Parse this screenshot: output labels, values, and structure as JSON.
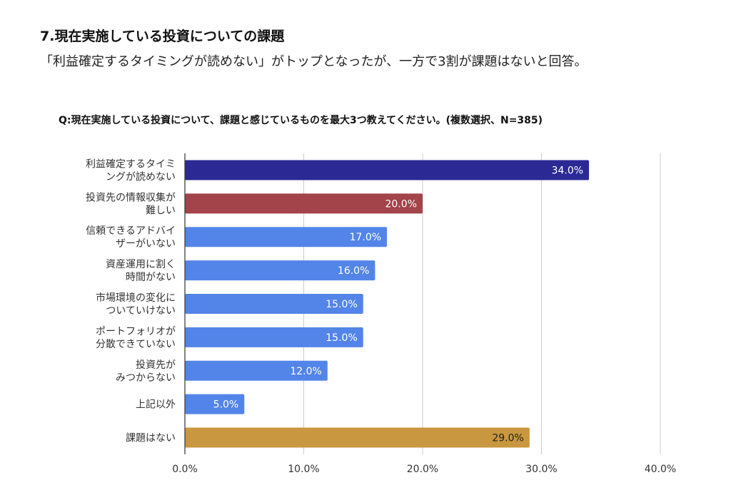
{
  "heading": "7.現在実施している投資についての課題",
  "summary": "「利益確定するタイミングが読めない」がトップとなったが、一方で3割が課題はないと回答。",
  "chart_data": {
    "type": "bar",
    "orientation": "horizontal",
    "title": "Q:現在実施している投資について、課題と感じているものを最大3つ教えてください。(複数選択、N=385)",
    "categories": [
      "利益確定するタイミ\nングが読めない",
      "投資先の情報収集が\n難しい",
      "信頼できるアドバイ\nザーがいない",
      "資産運用に割く\n時間がない",
      "市場環境の変化に\nついていけない",
      "ポートフォリオが\n分散できていない",
      "投資先が\nみつからない",
      "上記以外",
      "課題はない"
    ],
    "values": [
      34.0,
      20.0,
      17.0,
      16.0,
      15.0,
      15.0,
      12.0,
      5.0,
      29.0
    ],
    "data_labels": [
      "34.0%",
      "20.0%",
      "17.0%",
      "16.0%",
      "15.0%",
      "15.0%",
      "12.0%",
      "5.0%",
      "29.0%"
    ],
    "colors": [
      "#2b2a95",
      "#a3434a",
      "#5385e8",
      "#5385e8",
      "#5385e8",
      "#5385e8",
      "#5385e8",
      "#5385e8",
      "#c9973f"
    ],
    "label_colors": [
      "#ffffff",
      "#ffffff",
      "#ffffff",
      "#ffffff",
      "#ffffff",
      "#ffffff",
      "#ffffff",
      "#ffffff",
      "#222222"
    ],
    "xlim": [
      0,
      40
    ],
    "xticks": [
      0,
      10,
      20,
      30,
      40
    ],
    "xtick_labels": [
      "0.0%",
      "10.0%",
      "20.0%",
      "30.0%",
      "40.0%"
    ],
    "grid": true,
    "xlabel": "",
    "ylabel": ""
  }
}
